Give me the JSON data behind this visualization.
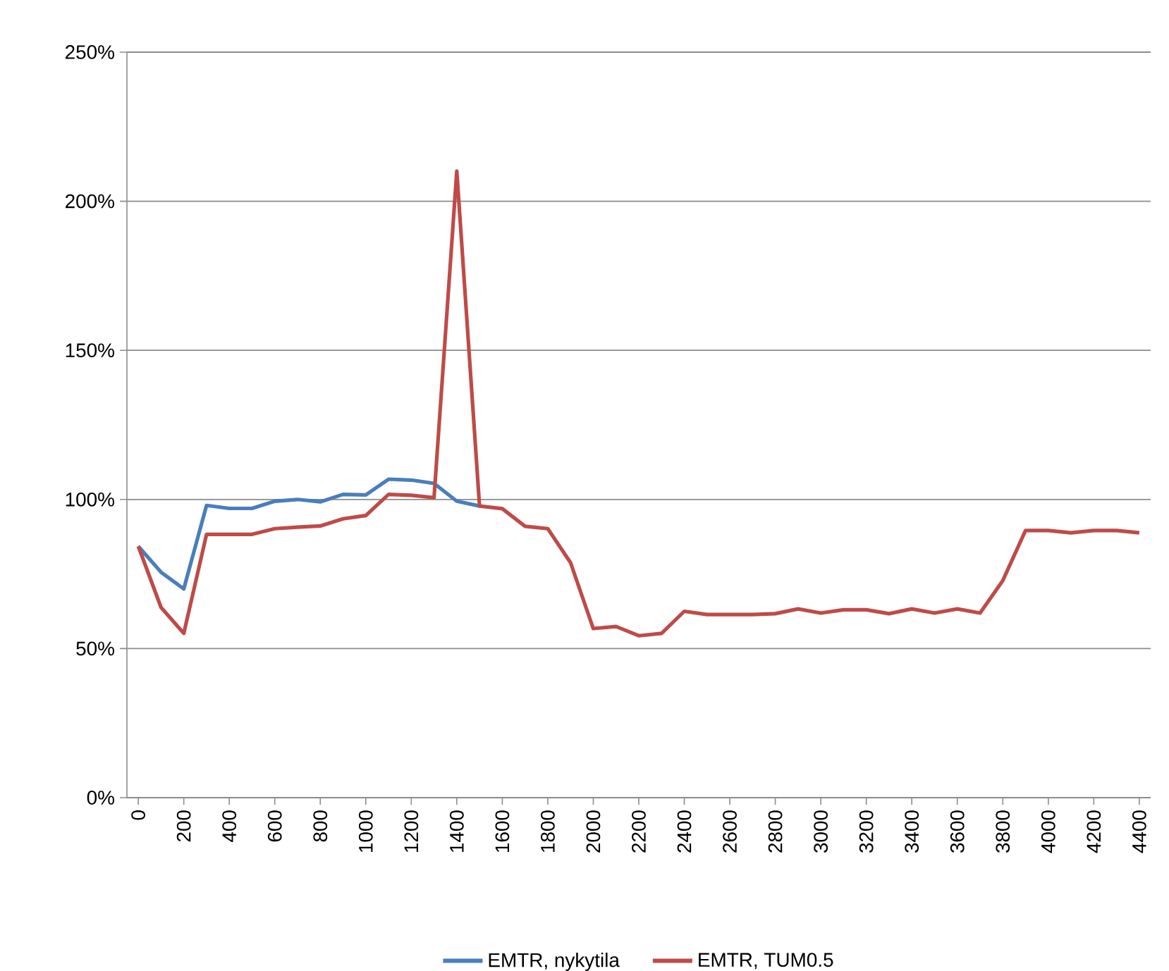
{
  "chart_data": {
    "type": "line",
    "categories": [
      "0",
      null,
      "200",
      null,
      "400",
      null,
      "600",
      null,
      "800",
      null,
      "1000",
      null,
      "1200",
      null,
      "1400",
      null,
      "1600",
      null,
      "1800",
      null,
      "2000",
      null,
      "2200",
      null,
      "2400",
      null,
      "2600",
      null,
      "2800",
      null,
      "3000",
      null,
      "3200",
      null,
      "3400",
      null,
      "3600",
      null,
      "3800",
      null,
      "4000",
      null,
      "4200",
      null,
      "4400"
    ],
    "series": [
      {
        "name": "EMTR, nykytila",
        "color": "#4a7ebb",
        "values": [
          84.3,
          75.6,
          70,
          98,
          97,
          97,
          99.4,
          100,
          99.2,
          101.7,
          101.5,
          106.8,
          106.5,
          105.4,
          99.4,
          97.8,
          null,
          null,
          null,
          null,
          null,
          null,
          null,
          null,
          null,
          null,
          null,
          null,
          null,
          null,
          null,
          null,
          null,
          null,
          null,
          null,
          null,
          null,
          null,
          null,
          null,
          null,
          null,
          null,
          null
        ]
      },
      {
        "name": "EMTR, TUM0.5",
        "color": "#be4b48",
        "values": [
          84.3,
          63.8,
          55.1,
          88.3,
          88.3,
          88.3,
          90.2,
          90.7,
          91.1,
          93.5,
          94.6,
          101.7,
          101.4,
          100.6,
          210.1,
          97.8,
          96.9,
          91,
          90.2,
          78.8,
          56.7,
          57.4,
          54.3,
          55.1,
          62.5,
          61.4,
          61.4,
          61.4,
          61.7,
          63.3,
          61.9,
          63,
          63,
          61.7,
          63.3,
          61.9,
          63.3,
          61.9,
          72.8,
          89.6,
          89.6,
          88.8,
          89.6,
          89.6,
          88.8
        ]
      }
    ],
    "ylim": [
      0,
      250
    ],
    "yticks": [
      {
        "value": 0,
        "label": "0%"
      },
      {
        "value": 50,
        "label": "50%"
      },
      {
        "value": 100,
        "label": "100%"
      },
      {
        "value": 150,
        "label": "150%"
      },
      {
        "value": 200,
        "label": "200%"
      },
      {
        "value": 250,
        "label": "250%"
      }
    ],
    "grid": "y",
    "legend": "bottom",
    "marker": "none",
    "line_style": "solid"
  }
}
